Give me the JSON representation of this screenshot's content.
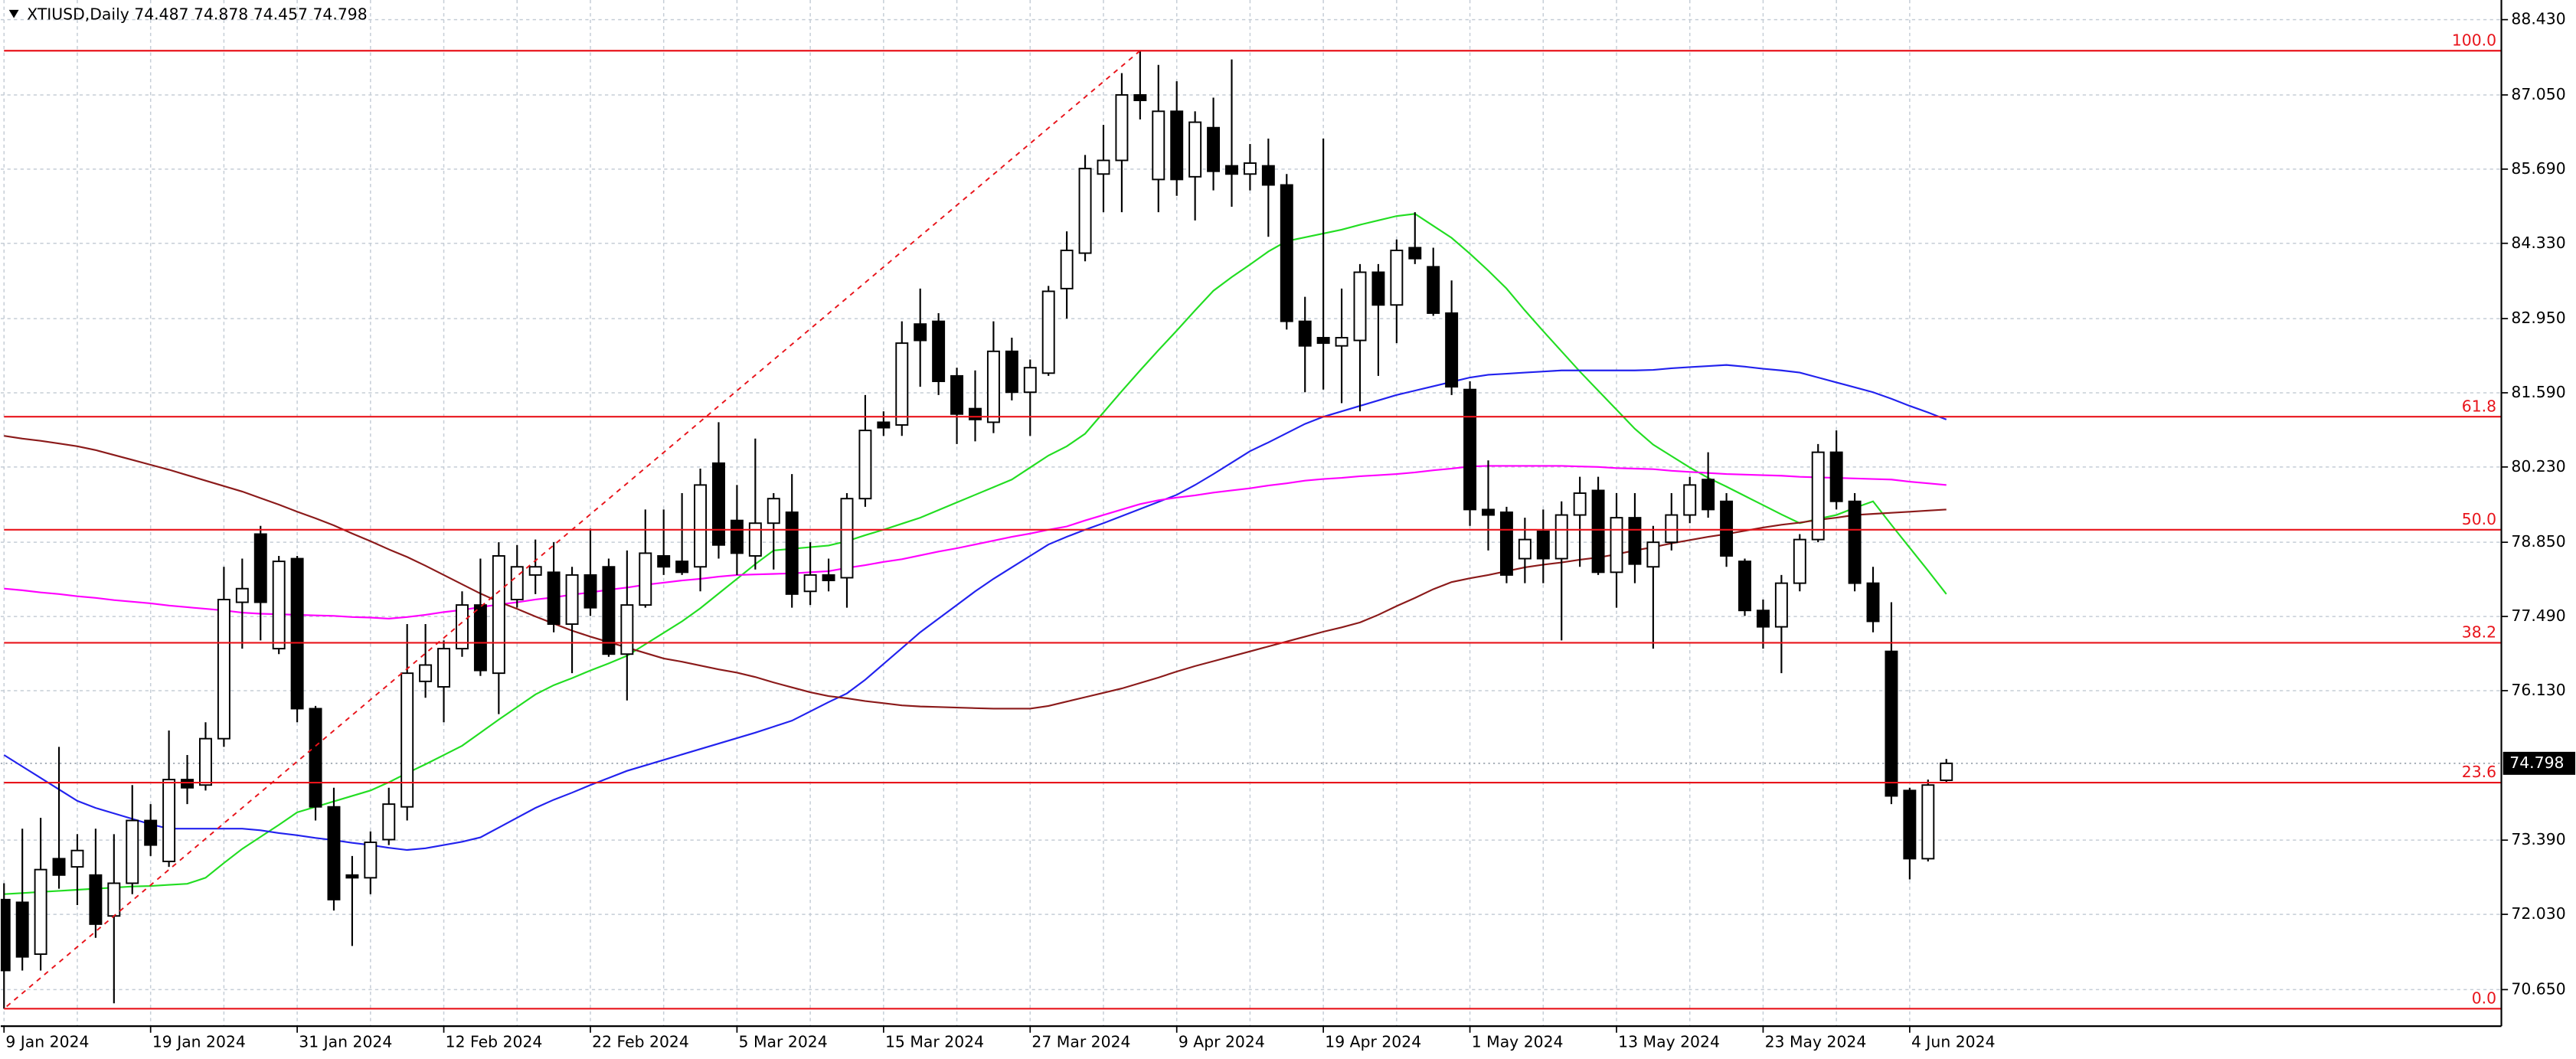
{
  "chart_data": {
    "type": "candlestick",
    "title": "XTIUSD,Daily",
    "categories": [
      "9 Jan 2024",
      null,
      null,
      null,
      null,
      null,
      null,
      null,
      "19 Jan 2024",
      null,
      null,
      null,
      null,
      null,
      null,
      null,
      "31 Jan 2024",
      null,
      null,
      null,
      null,
      null,
      null,
      null,
      "12 Feb 2024",
      null,
      null,
      null,
      null,
      null,
      null,
      null,
      "22 Feb 2024",
      null,
      null,
      null,
      null,
      null,
      null,
      null,
      "5 Mar 2024",
      null,
      null,
      null,
      null,
      null,
      null,
      null,
      "15 Mar 2024",
      null,
      null,
      null,
      null,
      null,
      null,
      null,
      "27 Mar 2024",
      null,
      null,
      null,
      null,
      null,
      null,
      null,
      "9 Apr 2024",
      null,
      null,
      null,
      null,
      null,
      null,
      null,
      "19 Apr 2024",
      null,
      null,
      null,
      null,
      null,
      null,
      null,
      "1 May 2024",
      null,
      null,
      null,
      null,
      null,
      null,
      null,
      "13 May 2024",
      null,
      null,
      null,
      null,
      null,
      null,
      null,
      "23 May 2024",
      null,
      null,
      null,
      null,
      null,
      null,
      null,
      "4 Jun 2024",
      null,
      null
    ],
    "open": [
      72.3,
      72.25,
      71.3,
      73.05,
      72.9,
      72.75,
      72.0,
      72.6,
      73.75,
      73.0,
      74.5,
      74.4,
      75.25,
      77.75,
      79.0,
      76.9,
      78.55,
      75.8,
      74.0,
      72.75,
      72.7,
      73.4,
      74.0,
      76.3,
      76.2,
      76.9,
      77.7,
      76.45,
      77.8,
      78.25,
      78.3,
      77.35,
      78.25,
      78.4,
      76.8,
      77.7,
      78.6,
      78.5,
      78.4,
      80.3,
      79.25,
      78.6,
      79.2,
      79.4,
      77.95,
      78.25,
      78.2,
      79.65,
      81.05,
      81.0,
      82.85,
      82.9,
      81.9,
      81.3,
      81.05,
      82.35,
      81.6,
      81.95,
      83.5,
      84.15,
      85.6,
      85.85,
      87.05,
      85.5,
      86.75,
      85.55,
      86.45,
      85.75,
      85.6,
      85.75,
      85.4,
      82.9,
      82.6,
      82.45,
      82.55,
      83.8,
      83.2,
      84.25,
      83.9,
      83.05,
      81.65,
      79.45,
      79.4,
      78.55,
      79.05,
      78.55,
      79.35,
      79.8,
      78.3,
      79.3,
      78.4,
      78.85,
      79.35,
      80.0,
      79.6,
      78.5,
      77.6,
      77.3,
      78.1,
      78.9,
      80.5,
      79.6,
      78.1,
      76.85,
      74.3,
      73.05,
      74.487
    ],
    "high": [
      72.6,
      73.6,
      73.8,
      75.1,
      73.5,
      73.6,
      73.5,
      74.4,
      74.05,
      75.4,
      74.95,
      75.55,
      78.4,
      78.55,
      79.15,
      78.6,
      78.6,
      75.85,
      74.35,
      73.1,
      73.55,
      74.35,
      77.35,
      77.35,
      77.05,
      77.95,
      78.55,
      78.85,
      78.8,
      78.9,
      78.85,
      78.4,
      79.1,
      78.55,
      78.7,
      79.45,
      79.45,
      79.75,
      80.2,
      81.05,
      79.9,
      80.75,
      79.75,
      80.1,
      78.85,
      78.55,
      79.75,
      81.55,
      81.25,
      82.9,
      83.5,
      83.05,
      82.05,
      82.0,
      82.9,
      82.6,
      82.2,
      83.55,
      84.55,
      85.95,
      86.5,
      87.45,
      87.86,
      87.6,
      87.3,
      86.75,
      87.0,
      87.7,
      86.15,
      86.25,
      85.6,
      83.35,
      86.25,
      83.5,
      83.95,
      83.95,
      84.4,
      84.9,
      84.25,
      83.65,
      81.8,
      80.35,
      79.5,
      79.3,
      79.45,
      79.6,
      80.05,
      80.05,
      79.75,
      79.75,
      79.15,
      79.75,
      80.05,
      80.5,
      79.75,
      78.55,
      77.8,
      78.25,
      79.0,
      80.65,
      80.9,
      79.75,
      78.4,
      77.75,
      74.35,
      74.5,
      74.878
    ],
    "low": [
      70.3,
      71.0,
      71.0,
      72.5,
      72.2,
      71.6,
      70.4,
      72.4,
      73.1,
      72.9,
      74.05,
      74.3,
      75.1,
      76.9,
      77.05,
      76.8,
      75.55,
      73.75,
      72.1,
      71.45,
      72.4,
      73.3,
      73.75,
      76.0,
      75.55,
      76.75,
      76.4,
      75.7,
      77.65,
      77.9,
      77.2,
      76.45,
      77.5,
      76.75,
      75.95,
      77.65,
      78.25,
      78.25,
      77.95,
      78.55,
      78.25,
      78.35,
      78.35,
      77.65,
      77.7,
      77.95,
      77.65,
      79.5,
      80.8,
      80.8,
      81.7,
      81.55,
      80.65,
      80.7,
      80.85,
      81.45,
      80.8,
      81.9,
      82.95,
      84.0,
      84.9,
      84.9,
      86.6,
      84.9,
      85.2,
      84.75,
      85.3,
      85.0,
      85.3,
      84.45,
      82.75,
      81.6,
      81.65,
      81.4,
      81.25,
      81.9,
      82.5,
      83.95,
      83.0,
      81.55,
      79.15,
      78.7,
      78.1,
      78.1,
      78.1,
      77.05,
      78.4,
      78.25,
      77.65,
      78.1,
      76.9,
      78.7,
      79.2,
      79.3,
      78.4,
      77.5,
      76.9,
      76.45,
      77.95,
      78.85,
      79.45,
      77.95,
      77.2,
      74.05,
      72.67,
      73.0,
      74.457
    ],
    "close": [
      71.0,
      71.25,
      72.85,
      72.75,
      73.2,
      71.85,
      72.6,
      73.75,
      73.3,
      74.5,
      74.35,
      75.25,
      77.8,
      78.0,
      77.75,
      78.5,
      75.8,
      74.0,
      72.3,
      72.7,
      73.35,
      74.05,
      76.45,
      76.6,
      76.9,
      77.7,
      76.5,
      78.6,
      78.4,
      78.4,
      77.35,
      78.25,
      77.65,
      76.8,
      77.7,
      78.65,
      78.4,
      78.3,
      79.9,
      78.8,
      78.65,
      79.2,
      79.65,
      77.9,
      78.25,
      78.15,
      79.65,
      80.9,
      80.95,
      82.5,
      82.55,
      81.8,
      81.2,
      81.1,
      82.35,
      81.6,
      82.05,
      83.45,
      84.2,
      85.7,
      85.85,
      87.05,
      86.95,
      86.75,
      85.5,
      86.55,
      85.65,
      85.6,
      85.8,
      85.4,
      82.9,
      82.45,
      82.5,
      82.6,
      83.8,
      83.2,
      84.2,
      84.05,
      83.05,
      81.7,
      79.45,
      79.35,
      78.25,
      78.9,
      78.55,
      79.35,
      79.75,
      78.3,
      79.3,
      78.45,
      78.85,
      79.35,
      79.9,
      79.45,
      78.6,
      77.6,
      77.3,
      78.1,
      78.9,
      80.5,
      79.6,
      78.1,
      77.4,
      74.2,
      73.05,
      74.4,
      74.798
    ],
    "up_color": "#ffffff",
    "down_color": "#000000",
    "moving_averages": [
      {
        "color": "#22dd22",
        "values": [
          72.4,
          72.42,
          72.44,
          72.46,
          72.48,
          72.5,
          72.52,
          72.54,
          72.55,
          72.57,
          72.59,
          72.7,
          72.97,
          73.23,
          73.45,
          73.67,
          73.9,
          74.0,
          74.1,
          74.2,
          74.3,
          74.45,
          74.62,
          74.78,
          74.95,
          75.12,
          75.36,
          75.6,
          75.83,
          76.06,
          76.23,
          76.36,
          76.5,
          76.63,
          76.77,
          76.98,
          77.19,
          77.4,
          77.64,
          77.91,
          78.18,
          78.45,
          78.7,
          78.73,
          78.76,
          78.79,
          78.87,
          78.98,
          79.08,
          79.19,
          79.3,
          79.44,
          79.58,
          79.72,
          79.86,
          80.0,
          80.22,
          80.44,
          80.61,
          80.84,
          81.23,
          81.62,
          82.0,
          82.37,
          82.73,
          83.1,
          83.46,
          83.71,
          83.94,
          84.18,
          84.37,
          84.44,
          84.51,
          84.58,
          84.67,
          84.75,
          84.83,
          84.87,
          84.65,
          84.43,
          84.14,
          83.83,
          83.5,
          83.1,
          82.72,
          82.35,
          81.98,
          81.63,
          81.28,
          80.93,
          80.64,
          80.43,
          80.22,
          80.03,
          79.87,
          79.7,
          79.53,
          79.36,
          79.2,
          79.28,
          79.35,
          79.48,
          79.6,
          79.17,
          78.75,
          78.33,
          77.9
        ]
      },
      {
        "color": "#2222ee",
        "values": [
          74.95,
          74.74,
          74.53,
          74.32,
          74.11,
          73.98,
          73.88,
          73.78,
          73.68,
          73.6,
          73.6,
          73.6,
          73.6,
          73.6,
          73.57,
          73.52,
          73.48,
          73.43,
          73.39,
          73.34,
          73.3,
          73.25,
          73.21,
          73.24,
          73.3,
          73.36,
          73.44,
          73.62,
          73.8,
          73.98,
          74.13,
          74.26,
          74.4,
          74.53,
          74.66,
          74.76,
          74.86,
          74.96,
          75.06,
          75.16,
          75.26,
          75.36,
          75.47,
          75.58,
          75.75,
          75.92,
          76.08,
          76.33,
          76.62,
          76.91,
          77.2,
          77.45,
          77.7,
          77.95,
          78.18,
          78.39,
          78.6,
          78.81,
          78.95,
          79.08,
          79.2,
          79.33,
          79.46,
          79.59,
          79.72,
          79.9,
          80.1,
          80.31,
          80.52,
          80.68,
          80.85,
          81.02,
          81.15,
          81.25,
          81.35,
          81.45,
          81.55,
          81.63,
          81.71,
          81.79,
          81.87,
          81.92,
          81.94,
          81.96,
          81.98,
          82.0,
          82.0,
          82.0,
          82.0,
          82.0,
          82.01,
          82.04,
          82.06,
          82.08,
          82.1,
          82.07,
          82.03,
          82.0,
          81.96,
          81.87,
          81.78,
          81.69,
          81.6,
          81.48,
          81.35,
          81.23,
          81.1
        ]
      },
      {
        "color": "#ff00ff",
        "values": [
          78.0,
          77.97,
          77.93,
          77.9,
          77.86,
          77.83,
          77.79,
          77.76,
          77.73,
          77.69,
          77.66,
          77.63,
          77.6,
          77.56,
          77.54,
          77.53,
          77.52,
          77.51,
          77.5,
          77.48,
          77.47,
          77.45,
          77.48,
          77.52,
          77.57,
          77.61,
          77.66,
          77.71,
          77.75,
          77.8,
          77.84,
          77.89,
          77.93,
          77.98,
          78.02,
          78.07,
          78.11,
          78.15,
          78.18,
          78.22,
          78.25,
          78.26,
          78.27,
          78.28,
          78.3,
          78.32,
          78.38,
          78.43,
          78.49,
          78.54,
          78.61,
          78.68,
          78.74,
          78.81,
          78.88,
          78.95,
          79.01,
          79.08,
          79.14,
          79.25,
          79.35,
          79.45,
          79.55,
          79.62,
          79.67,
          79.71,
          79.76,
          79.8,
          79.84,
          79.89,
          79.93,
          79.98,
          80.01,
          80.03,
          80.06,
          80.08,
          80.1,
          80.13,
          80.17,
          80.2,
          80.24,
          80.25,
          80.25,
          80.25,
          80.25,
          80.25,
          80.24,
          80.23,
          80.21,
          80.2,
          80.19,
          80.16,
          80.14,
          80.12,
          80.1,
          80.09,
          80.08,
          80.07,
          80.05,
          80.04,
          80.03,
          80.02,
          80.01,
          80.0,
          79.96,
          79.93,
          79.9
        ]
      },
      {
        "color": "#8b1a1a",
        "values": [
          80.8,
          80.75,
          80.71,
          80.66,
          80.61,
          80.54,
          80.45,
          80.36,
          80.27,
          80.18,
          80.08,
          79.98,
          79.88,
          79.78,
          79.66,
          79.54,
          79.41,
          79.29,
          79.16,
          79.01,
          78.87,
          78.72,
          78.58,
          78.42,
          78.25,
          78.08,
          77.91,
          77.76,
          77.63,
          77.49,
          77.36,
          77.23,
          77.12,
          77.02,
          76.92,
          76.82,
          76.72,
          76.66,
          76.59,
          76.52,
          76.46,
          76.38,
          76.28,
          76.19,
          76.1,
          76.03,
          75.99,
          75.94,
          75.9,
          75.86,
          75.84,
          75.83,
          75.82,
          75.81,
          75.8,
          75.8,
          75.8,
          75.85,
          75.93,
          76.01,
          76.09,
          76.17,
          76.27,
          76.37,
          76.48,
          76.58,
          76.67,
          76.76,
          76.85,
          76.94,
          77.03,
          77.12,
          77.21,
          77.29,
          77.38,
          77.52,
          77.68,
          77.83,
          77.99,
          78.12,
          78.19,
          78.25,
          78.32,
          78.39,
          78.44,
          78.48,
          78.53,
          78.57,
          78.63,
          78.7,
          78.76,
          78.83,
          78.89,
          78.95,
          79.0,
          79.06,
          79.12,
          79.17,
          79.21,
          79.26,
          79.3,
          79.35,
          79.37,
          79.39,
          79.41,
          79.43,
          79.45
        ]
      }
    ],
    "fibonacci": {
      "color": "#e8141b",
      "levels": [
        {
          "value": 100,
          "label": "100.0"
        },
        61.8,
        {
          "value": 50,
          "label": "50.0"
        },
        38.2,
        23.6,
        {
          "value": 0,
          "label": "0.0"
        }
      ]
    },
    "ylim": [
      69.98,
      88.79
    ],
    "yticks": [
      {
        "value": 88.43,
        "label": "88.430"
      },
      {
        "value": 87.05,
        "label": "87.050"
      },
      {
        "value": 85.69,
        "label": "85.690"
      },
      {
        "value": 84.33,
        "label": "84.330"
      },
      {
        "value": 82.95,
        "label": "82.950"
      },
      {
        "value": 81.59,
        "label": "81.590"
      },
      {
        "value": 80.23,
        "label": "80.230"
      },
      {
        "value": 78.85,
        "label": "78.850"
      },
      {
        "value": 77.49,
        "label": "77.490"
      },
      {
        "value": 76.13,
        "label": "76.130"
      },
      {
        "value": 73.39,
        "label": "73.390"
      },
      {
        "value": 72.03,
        "label": "72.030"
      },
      {
        "value": 70.65,
        "label": "70.650"
      }
    ],
    "grid": true
  }
}
